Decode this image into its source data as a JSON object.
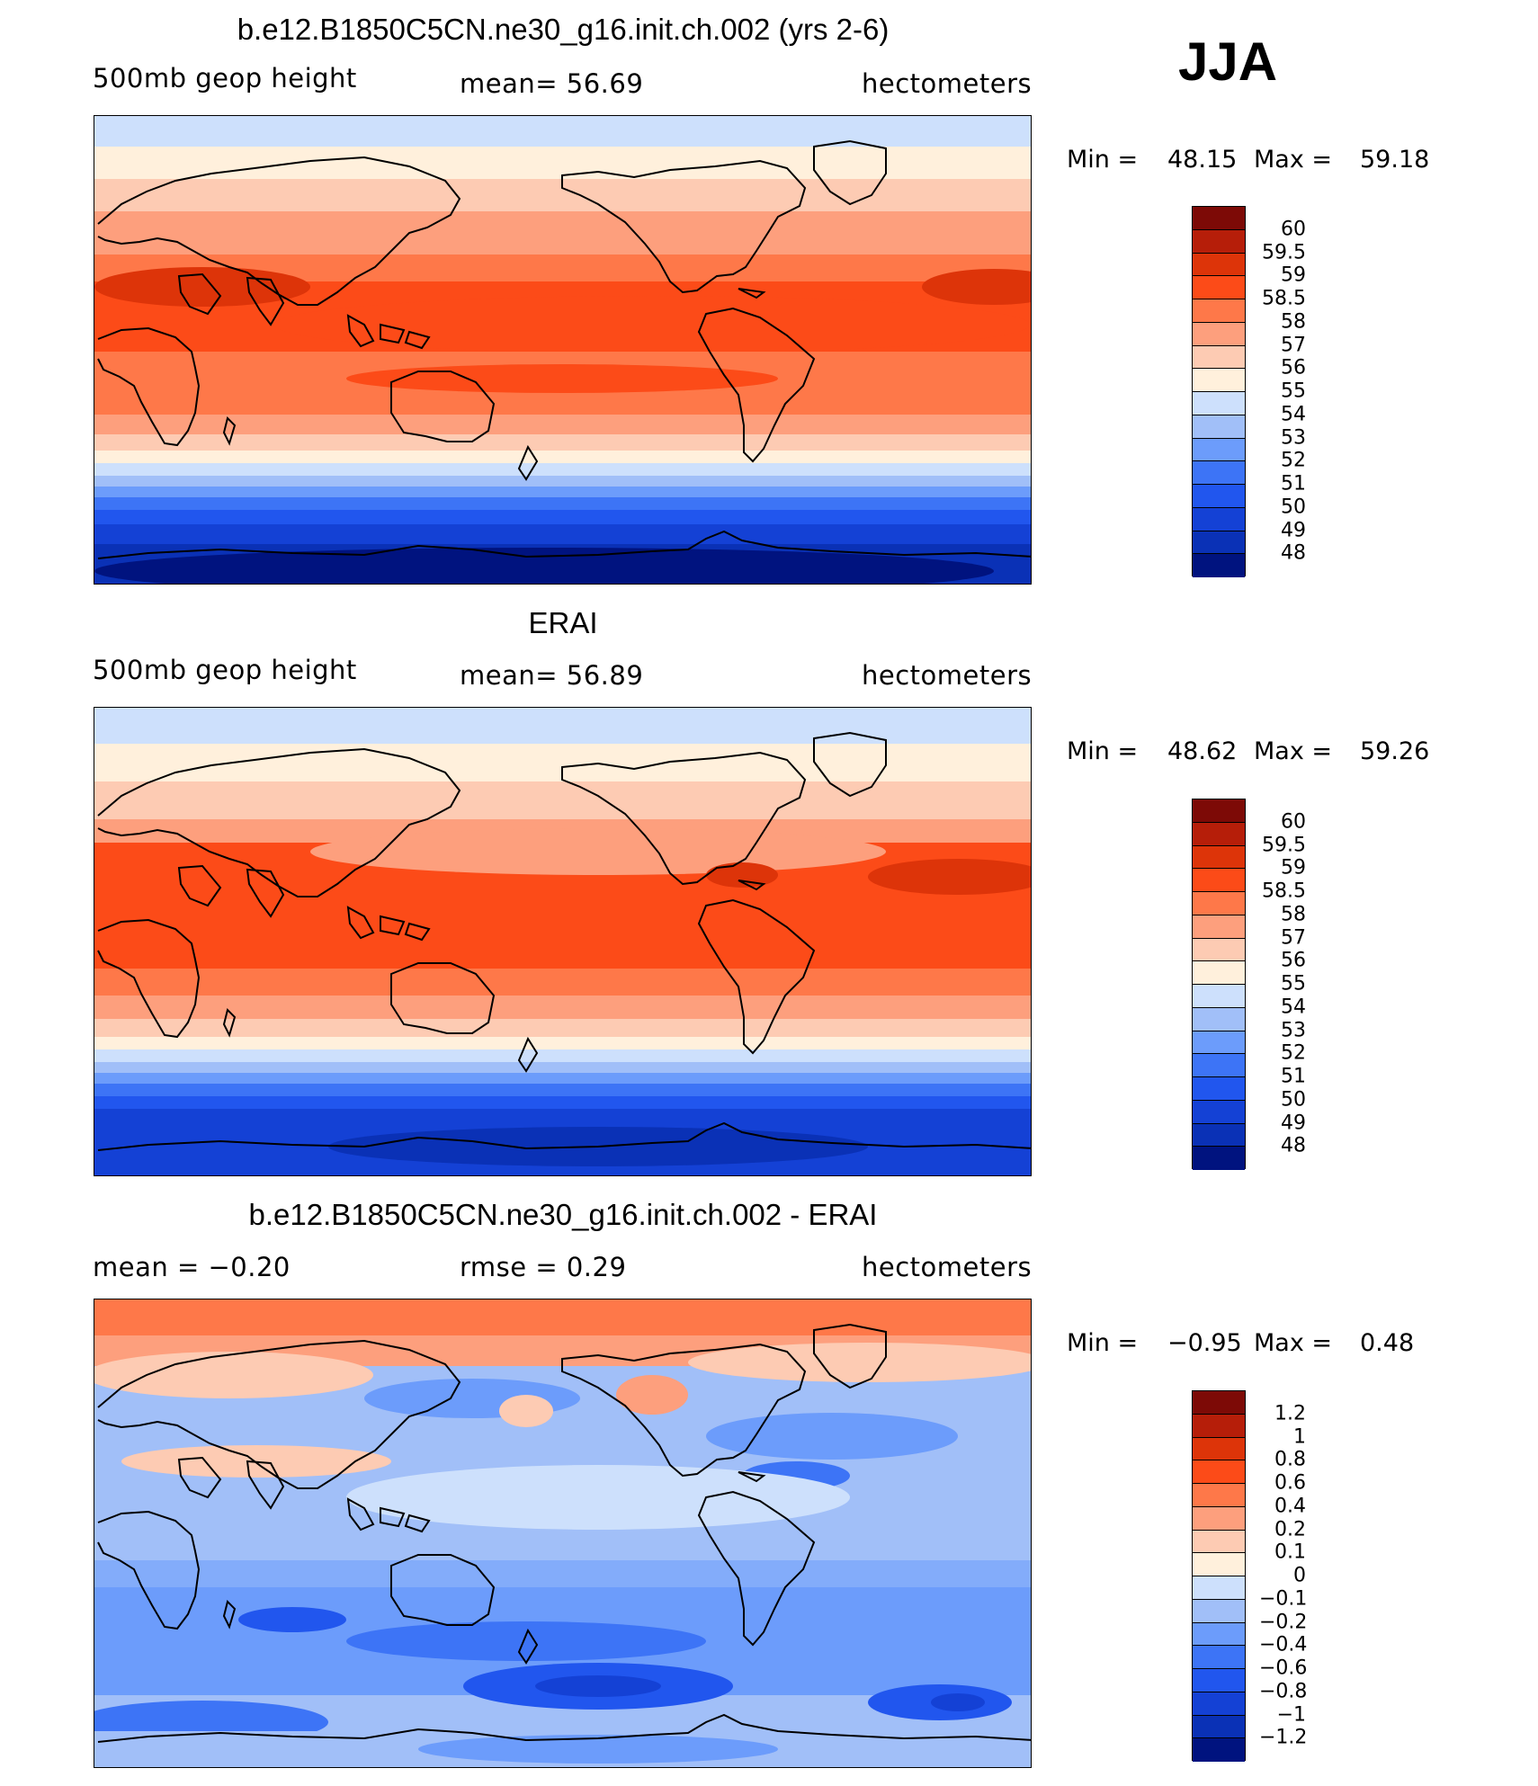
{
  "season": "JJA",
  "colors": {
    "abs_scale": [
      "#00137f",
      "#0a31b6",
      "#1441d5",
      "#2156ee",
      "#3d74f6",
      "#6c9cfb",
      "#a1bff8",
      "#cde0fc",
      "#fff0dc",
      "#fdcbb3",
      "#fd9f7d",
      "#fe7849",
      "#fc4b18",
      "#dd3409",
      "#b61e09",
      "#7d0a06"
    ],
    "diff_scale": [
      "#00137f",
      "#0a31b6",
      "#1441d5",
      "#2156ee",
      "#3d74f6",
      "#6c9cfb",
      "#a1bff8",
      "#cde0fc",
      "#fff0dc",
      "#fdcbb3",
      "#fd9f7d",
      "#fe7849",
      "#fc4b18",
      "#dd3409",
      "#b61e09",
      "#7d0a06"
    ]
  },
  "panels": [
    {
      "title": "b.e12.B1850C5CN.ne30_g16.init.ch.002 (yrs 2-6)",
      "left_label": "500mb geop height",
      "center_label": "mean=   56.69",
      "right_label": "hectometers",
      "minmax": {
        "min_label": "Min =",
        "min": "48.15",
        "max_label": "Max =",
        "max": "59.18"
      },
      "colorbar_labels": [
        "60",
        "59.5",
        "59",
        "58.5",
        "58",
        "57",
        "56",
        "55",
        "54",
        "53",
        "52",
        "51",
        "50",
        "49",
        "48"
      ]
    },
    {
      "title": "ERAI",
      "left_label": "500mb geop height",
      "center_label": "mean=   56.89",
      "right_label": "hectometers",
      "minmax": {
        "min_label": "Min =",
        "min": "48.62",
        "max_label": "Max =",
        "max": "59.26"
      },
      "colorbar_labels": [
        "60",
        "59.5",
        "59",
        "58.5",
        "58",
        "57",
        "56",
        "55",
        "54",
        "53",
        "52",
        "51",
        "50",
        "49",
        "48"
      ]
    },
    {
      "title": "b.e12.B1850C5CN.ne30_g16.init.ch.002 - ERAI",
      "left_label": "mean =   −0.20",
      "center_label": "rmse =    0.29",
      "right_label": "hectometers",
      "minmax": {
        "min_label": "Min =",
        "min": "−0.95",
        "max_label": "Max =",
        "max": "0.48"
      },
      "colorbar_labels": [
        "1.2",
        "1",
        "0.8",
        "0.6",
        "0.4",
        "0.2",
        "0.1",
        "0",
        "−0.1",
        "−0.2",
        "−0.4",
        "−0.6",
        "−0.8",
        "−1",
        "−1.2"
      ]
    }
  ]
}
